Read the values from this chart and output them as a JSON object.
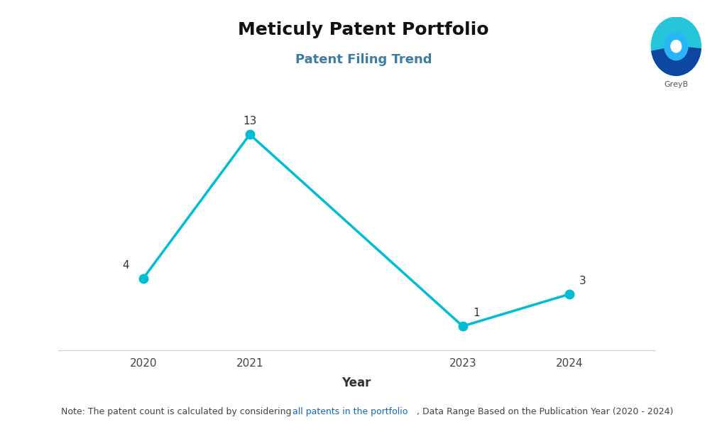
{
  "title": "Meticuly Patent Portfolio",
  "subtitle": "Patent Filing Trend",
  "x_values": [
    2020,
    2021,
    2023,
    2024
  ],
  "y_values": [
    4,
    13,
    1,
    3
  ],
  "line_color": "#00BCD4",
  "marker_color": "#00BCD4",
  "marker_size": 9,
  "line_width": 2.5,
  "xlabel": "Year",
  "xlabel_fontsize": 12,
  "title_fontsize": 18,
  "subtitle_fontsize": 13,
  "annotation_fontsize": 11,
  "tick_fontsize": 11,
  "note1": "Note: The patent count is calculated by considering ",
  "note2": "all patents in the portfolio",
  "note3": ", Data Range Based on the Publication Year (2020 - 2024)",
  "note_color1": "#444444",
  "note_color2": "#1565C0",
  "note_fontsize": 9,
  "ylim": [
    -0.5,
    15
  ],
  "xlim_left": 2019.2,
  "xlim_right": 2024.8,
  "background_color": "#ffffff",
  "subtitle_color": "#3a7ca5",
  "logo_color_teal": "#26C6DA",
  "logo_color_dark": "#1565C0",
  "logo_color_mid": "#0288D1"
}
